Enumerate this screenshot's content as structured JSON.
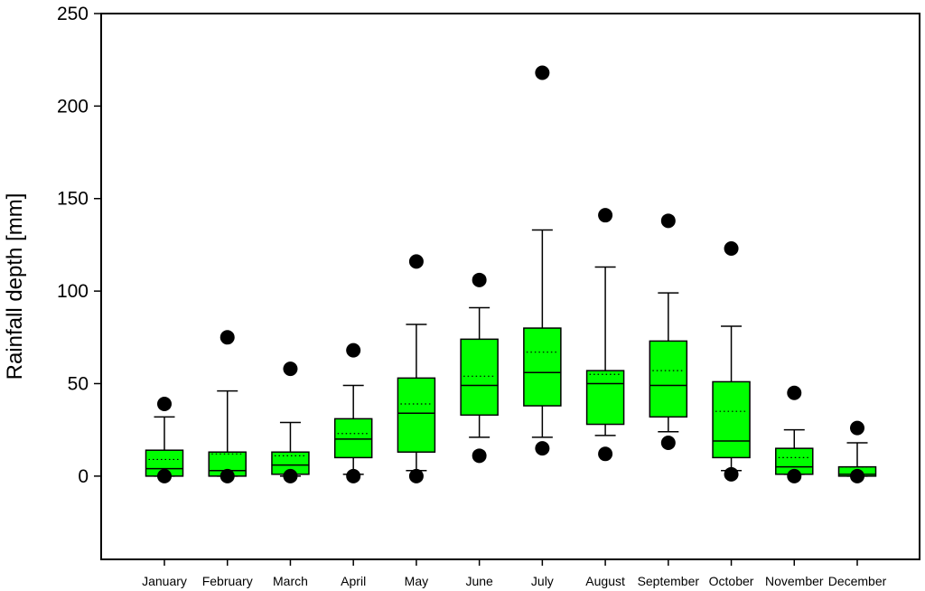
{
  "chart_data": {
    "type": "boxplot",
    "title": "",
    "xlabel": "",
    "ylabel": "Rainfall depth [mm]",
    "ylim": [
      -45,
      250
    ],
    "yticks": [
      0,
      50,
      100,
      150,
      200,
      250
    ],
    "colors": {
      "box_fill": "#00ff00",
      "stroke": "#000000"
    },
    "categories": [
      "January",
      "February",
      "March",
      "April",
      "May",
      "June",
      "July",
      "August",
      "September",
      "October",
      "November",
      "December"
    ],
    "boxes": [
      {
        "label": "January",
        "whisker_low": 0,
        "q1": 0,
        "median": 4,
        "mean": 9,
        "q3": 14,
        "whisker_high": 32,
        "outliers": [
          39,
          0
        ]
      },
      {
        "label": "February",
        "whisker_low": 0,
        "q1": 0,
        "median": 3,
        "mean": 12,
        "q3": 13,
        "whisker_high": 46,
        "outliers": [
          75,
          0
        ]
      },
      {
        "label": "March",
        "whisker_low": 0,
        "q1": 1,
        "median": 6,
        "mean": 11,
        "q3": 13,
        "whisker_high": 29,
        "outliers": [
          58,
          0
        ]
      },
      {
        "label": "April",
        "whisker_low": 1,
        "q1": 10,
        "median": 20,
        "mean": 23,
        "q3": 31,
        "whisker_high": 49,
        "outliers": [
          68,
          0
        ]
      },
      {
        "label": "May",
        "whisker_low": 3,
        "q1": 13,
        "median": 34,
        "mean": 39,
        "q3": 53,
        "whisker_high": 82,
        "outliers": [
          116,
          0
        ]
      },
      {
        "label": "June",
        "whisker_low": 21,
        "q1": 33,
        "median": 49,
        "mean": 54,
        "q3": 74,
        "whisker_high": 91,
        "outliers": [
          106,
          11
        ]
      },
      {
        "label": "July",
        "whisker_low": 21,
        "q1": 38,
        "median": 56,
        "mean": 67,
        "q3": 80,
        "whisker_high": 133,
        "outliers": [
          218,
          15
        ]
      },
      {
        "label": "August",
        "whisker_low": 22,
        "q1": 28,
        "median": 50,
        "mean": 55,
        "q3": 57,
        "whisker_high": 113,
        "outliers": [
          141,
          12
        ]
      },
      {
        "label": "September",
        "whisker_low": 24,
        "q1": 32,
        "median": 49,
        "mean": 57,
        "q3": 73,
        "whisker_high": 99,
        "outliers": [
          138,
          18
        ]
      },
      {
        "label": "October",
        "whisker_low": 3,
        "q1": 10,
        "median": 19,
        "mean": 35,
        "q3": 51,
        "whisker_high": 81,
        "outliers": [
          123,
          1
        ]
      },
      {
        "label": "November",
        "whisker_low": 1,
        "q1": 1,
        "median": 5,
        "mean": 10,
        "q3": 15,
        "whisker_high": 25,
        "outliers": [
          45,
          0
        ]
      },
      {
        "label": "December",
        "whisker_low": 0,
        "q1": 0,
        "median": 1,
        "mean": 5,
        "q3": 5,
        "whisker_high": 18,
        "outliers": [
          26,
          0
        ]
      }
    ]
  }
}
